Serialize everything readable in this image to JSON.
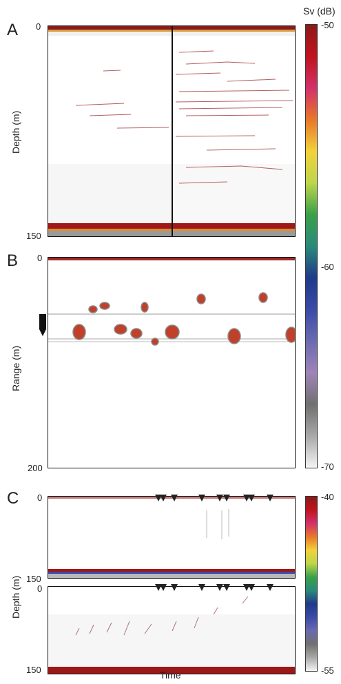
{
  "figure": {
    "panel_letters": [
      "A",
      "B",
      "C"
    ],
    "x_axis_label": "Time",
    "colorbar_title": "Sv (dB)"
  },
  "panel_a": {
    "ylabel": "Depth (m)",
    "ticks": [
      "0",
      "150"
    ]
  },
  "panel_b": {
    "ylabel": "Range (m)",
    "ticks": [
      "0",
      "200"
    ]
  },
  "panel_c": {
    "ylabel": "Depth (m)",
    "top_ticks": [
      "0",
      "150"
    ],
    "bottom_ticks": [
      "0",
      "150"
    ],
    "marker_icon": "down-triangle-icon"
  },
  "colorbar_ab": {
    "labels": [
      "-50",
      "-60",
      "-70"
    ],
    "colors": [
      "#8b1a1a",
      "#c0141e",
      "#d2306a",
      "#e8782a",
      "#f2d23a",
      "#bcd64a",
      "#3aa04a",
      "#2a8a7a",
      "#1f3a8a",
      "#3a4aa8",
      "#6a6ab0",
      "#a084b8",
      "#707070",
      "#a8a8a8",
      "#f4f4f4"
    ]
  },
  "colorbar_c": {
    "labels": [
      "-40",
      "-55"
    ],
    "colors": [
      "#8b1a1a",
      "#c0141e",
      "#d2306a",
      "#e8782a",
      "#f2d23a",
      "#bcd64a",
      "#3aa04a",
      "#2a8a7a",
      "#1f3a8a",
      "#3a4aa8",
      "#6a6ab0",
      "#707070",
      "#a8a8a8",
      "#f4f4f4"
    ]
  }
}
